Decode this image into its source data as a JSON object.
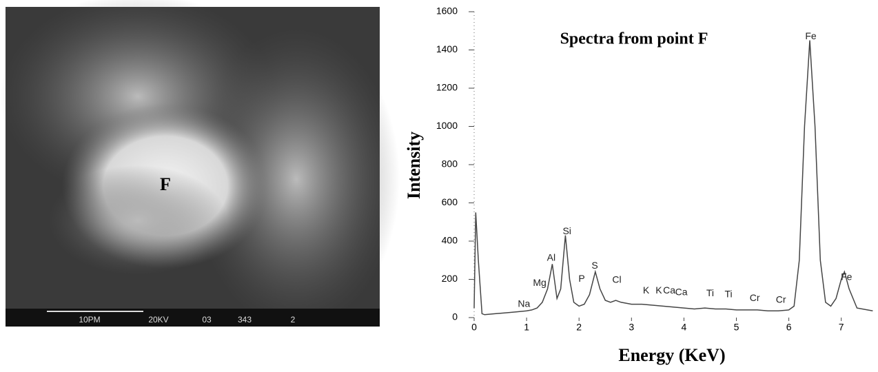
{
  "image": {
    "label": "F",
    "scale_bar": [
      "10PM",
      "20KV",
      "03",
      "343",
      "2"
    ]
  },
  "chart_data": {
    "type": "line",
    "title": "Spectra from point F",
    "x_label": "Energy (KeV)",
    "y_label": "Intensity",
    "color": "#444444",
    "x": [
      0,
      0.03,
      0.08,
      0.15,
      0.2,
      0.4,
      0.6,
      0.8,
      1.0,
      1.1,
      1.2,
      1.3,
      1.4,
      1.49,
      1.58,
      1.65,
      1.74,
      1.82,
      1.9,
      2.0,
      2.1,
      2.2,
      2.31,
      2.4,
      2.5,
      2.6,
      2.7,
      2.8,
      3.0,
      3.2,
      3.4,
      3.6,
      3.8,
      4.0,
      4.2,
      4.4,
      4.6,
      4.8,
      5.0,
      5.2,
      5.4,
      5.6,
      5.8,
      6.0,
      6.1,
      6.2,
      6.3,
      6.4,
      6.5,
      6.6,
      6.7,
      6.8,
      6.9,
      7.0,
      7.06,
      7.15,
      7.3,
      7.5,
      7.6
    ],
    "values": [
      50,
      550,
      300,
      20,
      15,
      20,
      25,
      30,
      35,
      40,
      50,
      80,
      150,
      280,
      100,
      150,
      430,
      200,
      80,
      60,
      70,
      120,
      240,
      150,
      90,
      80,
      90,
      80,
      70,
      70,
      65,
      60,
      55,
      50,
      45,
      50,
      45,
      45,
      40,
      40,
      40,
      35,
      35,
      40,
      60,
      300,
      1000,
      1450,
      1000,
      300,
      80,
      60,
      100,
      200,
      240,
      150,
      50,
      40,
      35
    ],
    "xlim": [
      0,
      7.6
    ],
    "ylim": [
      0,
      1600
    ],
    "xticks": [
      0,
      1,
      2,
      3,
      4,
      5,
      6,
      7
    ],
    "yticks": [
      0,
      200,
      400,
      600,
      800,
      1000,
      1200,
      1400,
      1600
    ],
    "annotations": [
      {
        "text": "Na",
        "x": 0.95,
        "y": 70
      },
      {
        "text": "Mg",
        "x": 1.25,
        "y": 180
      },
      {
        "text": "Al",
        "x": 1.47,
        "y": 310
      },
      {
        "text": "Si",
        "x": 1.77,
        "y": 450
      },
      {
        "text": "P",
        "x": 2.05,
        "y": 200
      },
      {
        "text": "S",
        "x": 2.3,
        "y": 270
      },
      {
        "text": "Cl",
        "x": 2.72,
        "y": 195
      },
      {
        "text": "K",
        "x": 3.28,
        "y": 140
      },
      {
        "text": "K",
        "x": 3.52,
        "y": 140
      },
      {
        "text": "Ca",
        "x": 3.72,
        "y": 140
      },
      {
        "text": "Ca",
        "x": 3.95,
        "y": 130
      },
      {
        "text": "Ti",
        "x": 4.5,
        "y": 125
      },
      {
        "text": "Ti",
        "x": 4.85,
        "y": 120
      },
      {
        "text": "Cr",
        "x": 5.35,
        "y": 100
      },
      {
        "text": "Cr",
        "x": 5.85,
        "y": 90
      },
      {
        "text": "Fe",
        "x": 6.42,
        "y": 1470
      },
      {
        "text": "Fe",
        "x": 7.1,
        "y": 210
      }
    ]
  }
}
